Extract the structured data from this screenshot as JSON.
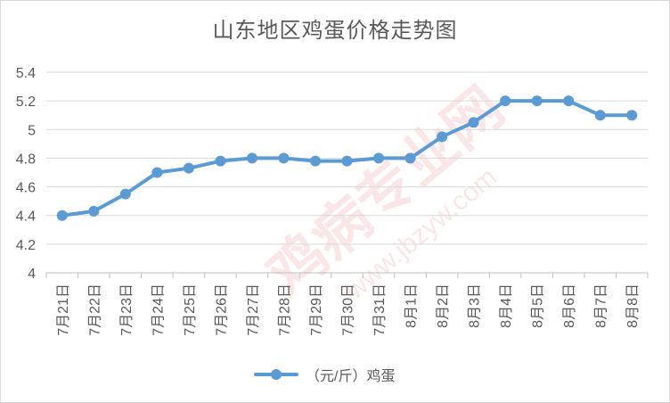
{
  "chart_data": {
    "type": "line",
    "title": "山东地区鸡蛋价格走势图",
    "categories": [
      "7月21日",
      "7月22日",
      "7月23日",
      "7月24日",
      "7月25日",
      "7月26日",
      "7月27日",
      "7月28日",
      "7月29日",
      "7月30日",
      "7月31日",
      "8月1日",
      "8月2日",
      "8月3日",
      "8月4日",
      "8月5日",
      "8月6日",
      "8月7日",
      "8月8日"
    ],
    "series": [
      {
        "name": "（元/斤）鸡蛋",
        "values": [
          4.4,
          4.43,
          4.55,
          4.7,
          4.73,
          4.78,
          4.8,
          4.8,
          4.78,
          4.78,
          4.8,
          4.8,
          4.95,
          5.05,
          5.2,
          5.2,
          5.2,
          5.1,
          5.1
        ]
      }
    ],
    "ylim": [
      4,
      5.4
    ],
    "yticks": [
      "4",
      "4.2",
      "4.4",
      "4.6",
      "4.8",
      "5",
      "5.2",
      "5.4"
    ],
    "grid": true,
    "legend": "bottom",
    "color": "#5b9bd5",
    "gridColor": "#d9d9d9"
  },
  "watermark": {
    "text": "鸡病专业网",
    "url": "www.jbzyw.com",
    "color": "#f2b8b8"
  }
}
